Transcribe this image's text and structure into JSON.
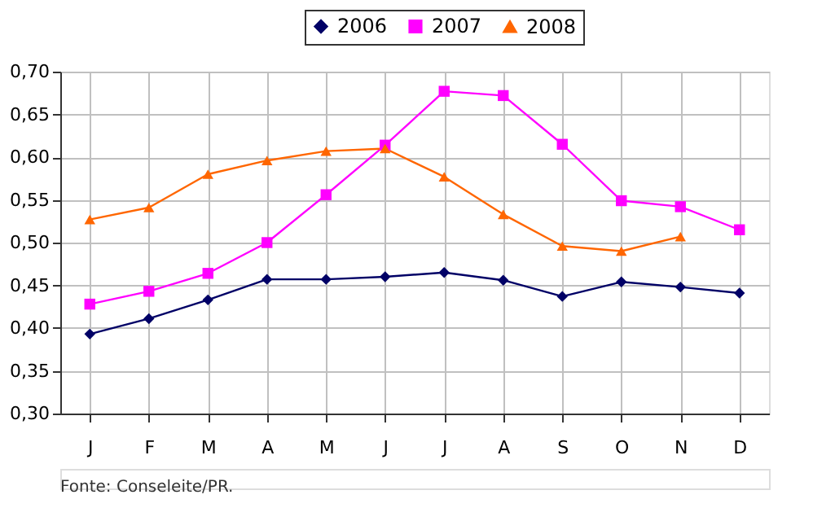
{
  "chart_data": {
    "type": "line",
    "categories": [
      "J",
      "F",
      "M",
      "A",
      "M",
      "J",
      "J",
      "A",
      "S",
      "O",
      "N",
      "D"
    ],
    "series": [
      {
        "name": "2006",
        "color": "#000066",
        "marker": "diamond",
        "values": [
          0.393,
          0.411,
          0.433,
          0.457,
          0.457,
          0.46,
          0.465,
          0.456,
          0.437,
          0.454,
          0.448,
          0.441
        ]
      },
      {
        "name": "2007",
        "color": "#ff00ff",
        "marker": "square",
        "values": [
          0.428,
          0.443,
          0.464,
          0.5,
          0.556,
          0.614,
          0.677,
          0.672,
          0.615,
          0.549,
          0.542,
          0.515
        ]
      },
      {
        "name": "2008",
        "color": "#ff6600",
        "marker": "triangle",
        "values": [
          0.527,
          0.541,
          0.58,
          0.596,
          0.607,
          0.61,
          0.577,
          0.533,
          0.496,
          0.49,
          0.507,
          null
        ]
      }
    ],
    "ylim": [
      0.3,
      0.7
    ],
    "yticks": [
      {
        "value": 0.3,
        "label": "0,30"
      },
      {
        "value": 0.35,
        "label": "0,35"
      },
      {
        "value": 0.4,
        "label": "0,40"
      },
      {
        "value": 0.45,
        "label": "0,45"
      },
      {
        "value": 0.5,
        "label": "0,50"
      },
      {
        "value": 0.55,
        "label": "0,55"
      },
      {
        "value": 0.6,
        "label": "0,60"
      },
      {
        "value": 0.65,
        "label": "0,65"
      },
      {
        "value": 0.7,
        "label": "0,70"
      }
    ],
    "grid": true,
    "legend": "top",
    "line_style": "solid",
    "annotations": [
      "Fonte: Conseleite/PR."
    ]
  }
}
